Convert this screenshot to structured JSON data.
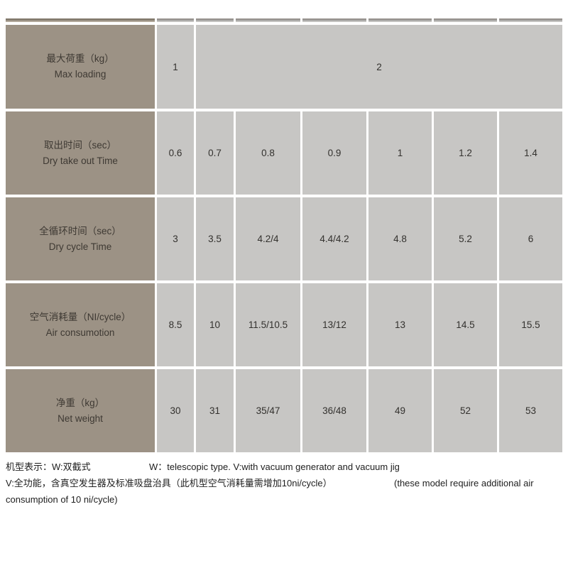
{
  "colors": {
    "header_cell": "#9c9285",
    "value_cell": "#c7c6c4",
    "table_text": "#3e3933",
    "footnote_text": "#1e1e1e",
    "background": "#ffffff"
  },
  "spec_table": {
    "rows": [
      {
        "label_zh": "最大荷重（kg）",
        "label_en": "Max loading",
        "values": [
          "1",
          "2"
        ]
      },
      {
        "label_zh": "取出时间（sec）",
        "label_en": "Dry take out Time",
        "values": [
          "0.6",
          "0.7",
          "0.8",
          "0.9",
          "1",
          "1.2",
          "1.4"
        ]
      },
      {
        "label_zh": "全循环时间（sec）",
        "label_en": "Dry cycle Time",
        "values": [
          "3",
          "3.5",
          "4.2/4",
          "4.4/4.2",
          "4.8",
          "5.2",
          "6"
        ]
      },
      {
        "label_zh": "空气消耗量（NI/cycle）",
        "label_en": "Air consumotion",
        "values": [
          "8.5",
          "10",
          "11.5/10.5",
          "13/12",
          "13",
          "14.5",
          "15.5"
        ]
      },
      {
        "label_zh": "净重（kg）",
        "label_en": "Net weight",
        "values": [
          "30",
          "31",
          "35/47",
          "36/48",
          "49",
          "52",
          "53"
        ]
      }
    ]
  },
  "footnotes": {
    "line1_zh": "机型表示：W:双截式",
    "line1_en": "W：telescopic type. V:with vacuum generator and vacuum jig",
    "line2_zh": "V:全功能，含真空发生器及标准吸盘治具（此机型空气消耗量需增加10ni/cycle）",
    "line2_en": "(these model require additional air",
    "line3": "consumption of 10 ni/cycle)"
  }
}
